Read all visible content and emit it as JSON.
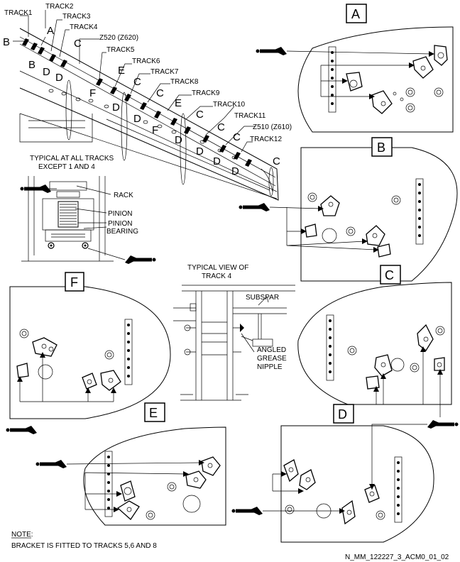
{
  "tracks": [
    "TRACK1",
    "TRACK2",
    "TRACK3",
    "TRACK4",
    "TRACK5",
    "TRACK6",
    "TRACK7",
    "TRACK8",
    "TRACK9",
    "TRACK10",
    "TRACK11",
    "TRACK12"
  ],
  "zones": {
    "z520": "Z520 (Z620)",
    "z510": "Z510 (Z610)"
  },
  "callouts": {
    "A": "A",
    "B": "B",
    "C": "C",
    "D": "D",
    "E": "E",
    "F": "F"
  },
  "views": {
    "A": "A",
    "B": "B",
    "C": "C",
    "D": "D",
    "E": "E",
    "F": "F"
  },
  "typical_all": {
    "line1": "TYPICAL AT ALL TRACKS",
    "line2": "EXCEPT 1 AND 4"
  },
  "rack_labels": {
    "rack": "RACK",
    "pinion": "PINION",
    "pinion_bearing_1": "PINION",
    "pinion_bearing_2": "BEARING"
  },
  "track4_view": {
    "line1": "TYPICAL VIEW OF",
    "line2": "TRACK 4",
    "subspar": "SUBSPAR",
    "nipple_1": "ANGLED",
    "nipple_2": "GREASE",
    "nipple_3": "NIPPLE"
  },
  "note": {
    "title": "NOTE:",
    "text": "BRACKET IS FITTED TO TRACKS 5,6 AND 8"
  },
  "figure_id": "N_MM_122227_3_ACM0_01_02"
}
